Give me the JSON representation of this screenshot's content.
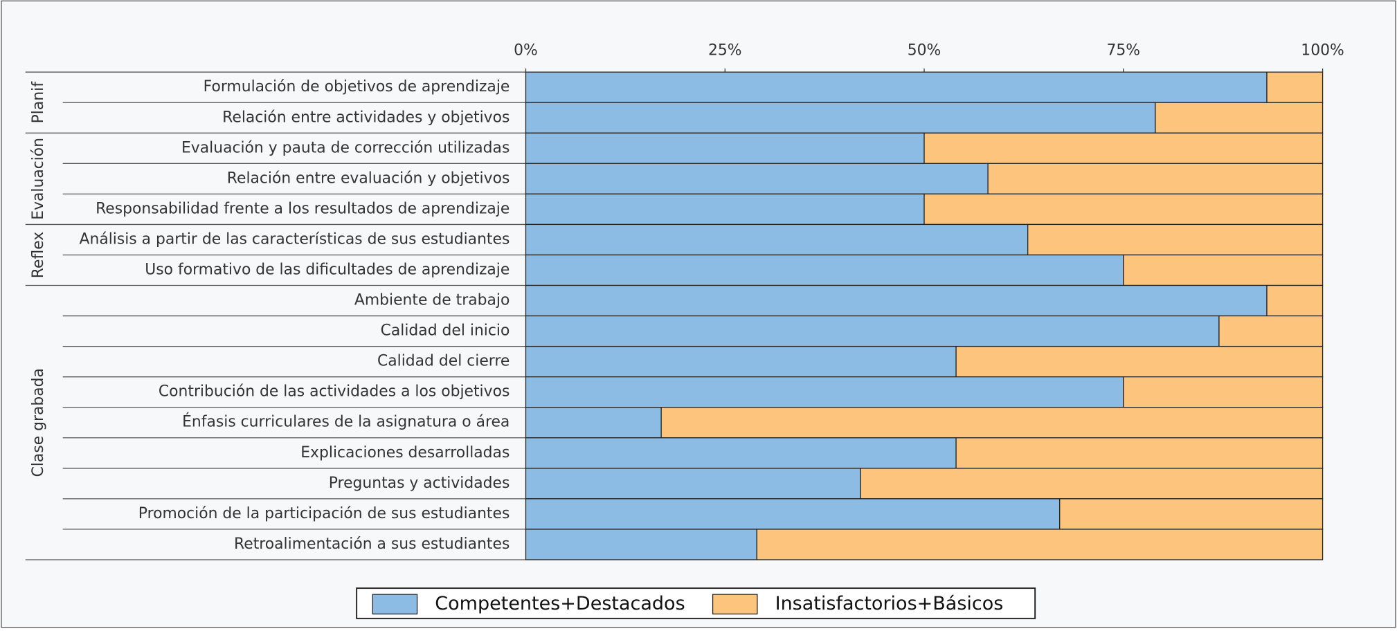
{
  "chart_data": {
    "type": "stacked_barh",
    "categories": [
      "Formulación de objetivos de aprendizaje",
      "Relación entre actividades y objetivos",
      "Evaluación y pauta de corrección utilizadas",
      "Relación entre evaluación y objetivos",
      "Responsabilidad frente a los resultados de aprendizaje",
      "Análisis a partir de las características de sus estudiantes",
      "Uso formativo de las dificultades de aprendizaje",
      "Ambiente de trabajo",
      "Calidad del  inicio",
      "Calidad del cierre",
      "Contribución de las actividades a los objetivos",
      "Énfasis curriculares de la asignatura o área",
      "Explicaciones desarrolladas",
      "Preguntas y actividades",
      "Promoción de la participación de sus estudiantes",
      "Retroalimentación a sus estudiantes"
    ],
    "groups": [
      "Planif",
      "Planif",
      "Evaluación",
      "Evaluación",
      "Evaluación",
      "Reflex",
      "Reflex",
      "Clase grabada",
      "Clase grabada",
      "Clase grabada",
      "Clase grabada",
      "Clase grabada",
      "Clase grabada",
      "Clase grabada",
      "Clase grabada",
      "Clase grabada"
    ],
    "series": [
      {
        "name": "Competentes+Destacados",
        "color": "#8cbce3",
        "values": [
          93,
          79,
          50,
          58,
          50,
          63,
          75,
          93,
          87,
          54,
          75,
          17,
          54,
          42,
          67,
          29
        ]
      },
      {
        "name": "Insatisfactorios+Básicos",
        "color": "#fcc47c",
        "values": [
          7,
          21,
          50,
          42,
          50,
          37,
          25,
          7,
          13,
          46,
          25,
          83,
          46,
          58,
          33,
          71
        ]
      }
    ],
    "xlim": [
      0,
      100
    ],
    "xticks": [
      {
        "value": 0,
        "label": "0%"
      },
      {
        "value": 25,
        "label": "25%"
      },
      {
        "value": 50,
        "label": "50%"
      },
      {
        "value": 75,
        "label": "75%"
      },
      {
        "value": 100,
        "label": "100%"
      }
    ]
  }
}
